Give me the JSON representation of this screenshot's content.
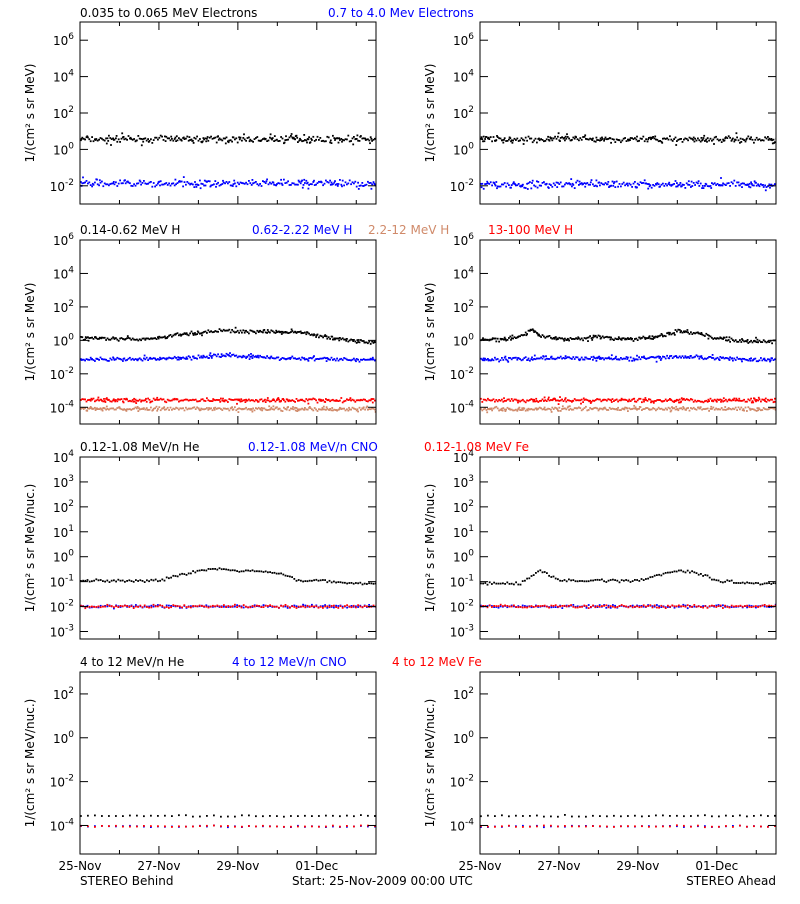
{
  "colors": {
    "black": "#000000",
    "blue": "#0000ff",
    "red": "#ff0000",
    "salmon": "#d08a6a",
    "grid": "#000000"
  },
  "footer": {
    "left": "STEREO Behind",
    "center": "Start: 25-Nov-2009 00:00 UTC",
    "right": "STEREO Ahead"
  },
  "rows": [
    {
      "legend": [
        {
          "text": "0.035 to 0.065 MeV Electrons",
          "color": "#000000"
        },
        {
          "text": "0.7 to 4.0 Mev Electrons",
          "color": "#0000ff"
        }
      ]
    },
    {
      "legend": [
        {
          "text": "0.14-0.62 MeV H",
          "color": "#000000"
        },
        {
          "text": "0.62-2.22 MeV H",
          "color": "#0000ff"
        },
        {
          "text": "2.2-12 MeV H",
          "color": "#d08a6a"
        },
        {
          "text": "13-100 MeV H",
          "color": "#ff0000"
        }
      ]
    },
    {
      "legend": [
        {
          "text": "0.12-1.08 MeV/n He",
          "color": "#000000"
        },
        {
          "text": "0.12-1.08 MeV/n CNO",
          "color": "#0000ff"
        },
        {
          "text": "0.12-1.08 MeV Fe",
          "color": "#ff0000"
        }
      ]
    },
    {
      "legend": [
        {
          "text": "4 to 12 MeV/n He",
          "color": "#000000"
        },
        {
          "text": "4 to 12 MeV/n CNO",
          "color": "#0000ff"
        },
        {
          "text": "4 to 12 MeV Fe",
          "color": "#ff0000"
        }
      ]
    }
  ],
  "x_tick_labels": [
    "25-Nov",
    "27-Nov",
    "29-Nov",
    "01-Dec"
  ],
  "chart_data": [
    {
      "type": "scatter",
      "panel": "electrons-behind",
      "ylabel": "1/(cm² s sr MeV)",
      "yscale": "log",
      "yticks": [
        "10^-2",
        "10^0",
        "10^2",
        "10^4",
        "10^6"
      ],
      "ylim": [
        0.001,
        10000000
      ],
      "xlim": [
        0,
        7.5
      ],
      "xunit": "days from 25-Nov-2009",
      "series": [
        {
          "name": "0.035 to 0.065 MeV Electrons",
          "color": "#000000",
          "x": [
            0,
            1,
            2,
            3,
            4,
            5,
            6,
            7.5
          ],
          "y": [
            4,
            4,
            4,
            4,
            4,
            4,
            4,
            4
          ]
        },
        {
          "name": "0.7 to 4.0 Mev Electrons",
          "color": "#0000ff",
          "x": [
            0,
            1,
            2,
            3,
            4,
            5,
            6,
            7.5
          ],
          "y": [
            0.015,
            0.015,
            0.015,
            0.015,
            0.015,
            0.015,
            0.015,
            0.015
          ]
        }
      ]
    },
    {
      "type": "scatter",
      "panel": "electrons-ahead",
      "ylabel": "1/(cm² s sr MeV)",
      "yscale": "log",
      "yticks": [
        "10^-2",
        "10^0",
        "10^2",
        "10^4",
        "10^6"
      ],
      "ylim": [
        0.001,
        10000000
      ],
      "xlim": [
        0,
        7.5
      ],
      "xunit": "days from 25-Nov-2009",
      "series": [
        {
          "name": "0.035 to 0.065 MeV Electrons",
          "color": "#000000",
          "x": [
            0,
            1,
            2,
            3,
            4,
            5,
            6,
            7.5
          ],
          "y": [
            4,
            4,
            4,
            4,
            4,
            4,
            4,
            4
          ]
        },
        {
          "name": "0.7 to 4.0 Mev Electrons",
          "color": "#0000ff",
          "x": [
            0,
            1,
            2,
            3,
            4,
            5,
            6,
            7.5
          ],
          "y": [
            0.013,
            0.013,
            0.013,
            0.013,
            0.013,
            0.013,
            0.013,
            0.013
          ]
        }
      ]
    },
    {
      "type": "scatter",
      "panel": "protons-behind",
      "ylabel": "1/(cm² s sr MeV)",
      "yscale": "log",
      "yticks": [
        "10^-4",
        "10^-2",
        "10^0",
        "10^2",
        "10^4",
        "10^6"
      ],
      "ylim": [
        1e-05,
        1000000
      ],
      "xlim": [
        0,
        7.5
      ],
      "xunit": "days from 25-Nov-2009",
      "series": [
        {
          "name": "0.14-0.62 MeV H",
          "color": "#000000",
          "x": [
            0,
            0.5,
            1,
            1.5,
            2,
            2.5,
            3,
            3.5,
            4,
            4.5,
            5,
            5.5,
            6,
            6.5,
            7,
            7.5
          ],
          "y": [
            1.6,
            1.4,
            1.4,
            1.3,
            1.6,
            2.5,
            3,
            4.5,
            4,
            3.8,
            3.5,
            3.8,
            2,
            1.5,
            1,
            0.8
          ]
        },
        {
          "name": "0.62-2.22 MeV H",
          "color": "#0000ff",
          "x": [
            0,
            1,
            2,
            3,
            3.5,
            4,
            5,
            6,
            7,
            7.5
          ],
          "y": [
            0.08,
            0.08,
            0.09,
            0.11,
            0.15,
            0.13,
            0.1,
            0.09,
            0.08,
            0.08
          ]
        },
        {
          "name": "13-100 MeV H",
          "color": "#ff0000",
          "x": [
            0,
            1,
            2,
            3,
            4,
            5,
            6,
            7,
            7.5
          ],
          "y": [
            0.0003,
            0.0003,
            0.0003,
            0.0003,
            0.0003,
            0.0003,
            0.0003,
            0.0003,
            0.0003
          ]
        },
        {
          "name": "2.2-12 MeV H",
          "color": "#d08a6a",
          "x": [
            0,
            1,
            2,
            3,
            4,
            5,
            6,
            7,
            7.5
          ],
          "y": [
            9e-05,
            9e-05,
            9e-05,
            9e-05,
            9e-05,
            9e-05,
            9e-05,
            9e-05,
            9e-05
          ]
        }
      ]
    },
    {
      "type": "scatter",
      "panel": "protons-ahead",
      "ylabel": "1/(cm² s sr MeV)",
      "yscale": "log",
      "yticks": [
        "10^-4",
        "10^-2",
        "10^0",
        "10^2",
        "10^4",
        "10^6"
      ],
      "ylim": [
        1e-05,
        1000000
      ],
      "xlim": [
        0,
        7.5
      ],
      "xunit": "days from 25-Nov-2009",
      "series": [
        {
          "name": "0.14-0.62 MeV H",
          "color": "#000000",
          "x": [
            0,
            0.5,
            1,
            1.3,
            1.5,
            2,
            2.5,
            3,
            3.5,
            4,
            4.5,
            5,
            5.5,
            6,
            6.5,
            7,
            7.5
          ],
          "y": [
            1.2,
            1.3,
            2,
            5,
            2,
            1.4,
            1.3,
            2,
            1.3,
            1.4,
            1.8,
            4,
            3,
            1.5,
            1,
            1,
            0.9
          ]
        },
        {
          "name": "0.62-2.22 MeV H",
          "color": "#0000ff",
          "x": [
            0,
            1,
            2,
            3,
            4,
            5,
            6,
            7,
            7.5
          ],
          "y": [
            0.08,
            0.09,
            0.1,
            0.09,
            0.09,
            0.12,
            0.1,
            0.08,
            0.08
          ]
        },
        {
          "name": "13-100 MeV H",
          "color": "#ff0000",
          "x": [
            0,
            1,
            2,
            3,
            4,
            5,
            6,
            7,
            7.5
          ],
          "y": [
            0.0003,
            0.0003,
            0.0003,
            0.0003,
            0.0003,
            0.0003,
            0.0003,
            0.0003,
            0.0003
          ]
        },
        {
          "name": "2.2-12 MeV H",
          "color": "#d08a6a",
          "x": [
            0,
            1,
            2,
            3,
            4,
            5,
            6,
            7,
            7.5
          ],
          "y": [
            9e-05,
            9e-05,
            9e-05,
            9e-05,
            9e-05,
            9e-05,
            9e-05,
            9e-05,
            9e-05
          ]
        }
      ]
    },
    {
      "type": "scatter",
      "panel": "ions-low-behind",
      "ylabel": "1/(cm² s sr MeV/nuc.)",
      "yscale": "log",
      "yticks": [
        "10^-3",
        "10^-2",
        "10^-1",
        "10^0",
        "10^1",
        "10^2",
        "10^3",
        "10^4"
      ],
      "ylim": [
        0.0005,
        10000
      ],
      "xlim": [
        0,
        7.5
      ],
      "xunit": "days from 25-Nov-2009",
      "series": [
        {
          "name": "0.12-1.08 MeV/n He",
          "color": "#000000",
          "x": [
            0,
            1,
            2,
            2.5,
            3,
            3.5,
            4,
            4.5,
            5,
            5.5,
            6,
            7,
            7.5
          ],
          "y": [
            0.12,
            0.12,
            0.12,
            0.2,
            0.3,
            0.35,
            0.3,
            0.3,
            0.25,
            0.12,
            0.12,
            0.09,
            0.09
          ]
        },
        {
          "name": "0.12-1.08 MeV/n CNO",
          "color": "#0000ff",
          "x": [
            0,
            2,
            4,
            6,
            7.5
          ],
          "y": [
            0.011,
            0.011,
            0.011,
            0.011,
            0.011
          ]
        },
        {
          "name": "0.12-1.08 MeV Fe",
          "color": "#ff0000",
          "x": [
            0,
            2,
            4,
            6,
            7.5
          ],
          "y": [
            0.011,
            0.011,
            0.011,
            0.011,
            0.011
          ]
        }
      ]
    },
    {
      "type": "scatter",
      "panel": "ions-low-ahead",
      "ylabel": "1/(cm² s sr MeV/nuc.)",
      "yscale": "log",
      "yticks": [
        "10^-3",
        "10^-2",
        "10^-1",
        "10^0",
        "10^1",
        "10^2",
        "10^3",
        "10^4"
      ],
      "ylim": [
        0.0005,
        10000
      ],
      "xlim": [
        0,
        7.5
      ],
      "xunit": "days from 25-Nov-2009",
      "series": [
        {
          "name": "0.12-1.08 MeV/n He",
          "color": "#000000",
          "x": [
            0,
            1,
            1.5,
            2,
            3,
            4,
            4.5,
            5,
            5.5,
            6,
            7,
            7.5
          ],
          "y": [
            0.09,
            0.09,
            0.3,
            0.12,
            0.12,
            0.12,
            0.2,
            0.3,
            0.25,
            0.12,
            0.09,
            0.09
          ]
        },
        {
          "name": "0.12-1.08 MeV/n CNO",
          "color": "#0000ff",
          "x": [
            0,
            2,
            4,
            6,
            7.5
          ],
          "y": [
            0.011,
            0.011,
            0.011,
            0.011,
            0.011
          ]
        },
        {
          "name": "0.12-1.08 MeV Fe",
          "color": "#ff0000",
          "x": [
            0,
            2,
            4,
            6,
            7.5
          ],
          "y": [
            0.011,
            0.011,
            0.011,
            0.011,
            0.011
          ]
        }
      ]
    },
    {
      "type": "scatter",
      "panel": "ions-high-behind",
      "ylabel": "1/(cm² s sr MeV/nuc.)",
      "yscale": "log",
      "yticks": [
        "10^-4",
        "10^-2",
        "10^0",
        "10^2"
      ],
      "ylim": [
        5e-06,
        1000
      ],
      "xlim": [
        0,
        7.5
      ],
      "xunit": "days from 25-Nov-2009",
      "series": [
        {
          "name": "4 to 12 MeV/n He",
          "color": "#000000",
          "x": [
            0,
            1,
            2,
            3,
            4,
            5,
            6,
            7,
            7.5
          ],
          "y": [
            0.0003,
            0.0003,
            0.0003,
            0.0003,
            0.0003,
            0.0003,
            0.0003,
            0.0003,
            0.0003
          ]
        },
        {
          "name": "4 to 12 MeV/n CNO",
          "color": "#0000ff",
          "x": [
            0,
            7.5
          ],
          "y": [
            0.0001,
            0.0001
          ]
        },
        {
          "name": "4 to 12 MeV Fe",
          "color": "#ff0000",
          "x": [
            0,
            7.5
          ],
          "y": [
            0.0001,
            0.0001
          ]
        }
      ]
    },
    {
      "type": "scatter",
      "panel": "ions-high-ahead",
      "ylabel": "1/(cm² s sr MeV/nuc.)",
      "yscale": "log",
      "yticks": [
        "10^-4",
        "10^-2",
        "10^0",
        "10^2"
      ],
      "ylim": [
        5e-06,
        1000
      ],
      "xlim": [
        0,
        7.5
      ],
      "xunit": "days from 25-Nov-2009",
      "series": [
        {
          "name": "4 to 12 MeV/n He",
          "color": "#000000",
          "x": [
            0,
            1,
            2,
            3,
            4,
            5,
            6,
            7,
            7.5
          ],
          "y": [
            0.0003,
            0.0003,
            0.0003,
            0.0003,
            0.0003,
            0.0003,
            0.0003,
            0.0003,
            0.0003
          ]
        },
        {
          "name": "4 to 12 MeV/n CNO",
          "color": "#0000ff",
          "x": [
            0,
            7.5
          ],
          "y": [
            0.0001,
            0.0001
          ]
        },
        {
          "name": "4 to 12 MeV Fe",
          "color": "#ff0000",
          "x": [
            0,
            7.5
          ],
          "y": [
            0.0001,
            0.0001
          ]
        }
      ]
    }
  ]
}
